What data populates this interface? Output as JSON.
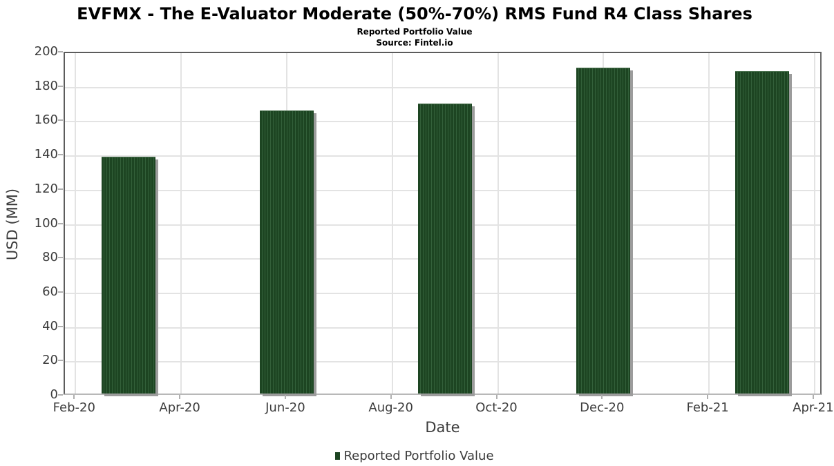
{
  "chart_data": {
    "type": "bar",
    "title": "EVFMX - The E-Valuator Moderate (50%-70%) RMS Fund R4 Class Shares",
    "subtitle": "Reported Portfolio Value",
    "source": "Source: Fintel.io",
    "xlabel": "Date",
    "ylabel": "USD (MM)",
    "ylim": [
      0,
      200
    ],
    "ytick_interval": 20,
    "ytick_labels": [
      "0",
      "20",
      "40",
      "60",
      "80",
      "100",
      "120",
      "140",
      "160",
      "180",
      "200"
    ],
    "xtick_labels": [
      "Feb-20",
      "Apr-20",
      "Jun-20",
      "Aug-20",
      "Oct-20",
      "Dec-20",
      "Feb-21",
      "Apr-21"
    ],
    "grid": "on",
    "legend": {
      "label": "Reported Portfolio Value",
      "position": "bottom-center"
    },
    "series": [
      {
        "name": "Reported Portfolio Value",
        "points": [
          {
            "date": "Mar-20",
            "month_index": 1,
            "value": 138
          },
          {
            "date": "Jun-20",
            "month_index": 4,
            "value": 165
          },
          {
            "date": "Sep-20",
            "month_index": 7,
            "value": 169
          },
          {
            "date": "Dec-20",
            "month_index": 10,
            "value": 190
          },
          {
            "date": "Mar-21",
            "month_index": 13,
            "value": 188
          }
        ]
      }
    ],
    "colors": {
      "bar_fill": "#1d4522",
      "bar_stripe": "#33603a",
      "bar_shadow": "#9c9c9c",
      "grid_line": "#e3e3e3",
      "tick_mark": "#b0b0b0",
      "spine": "#5c5c5c"
    }
  }
}
